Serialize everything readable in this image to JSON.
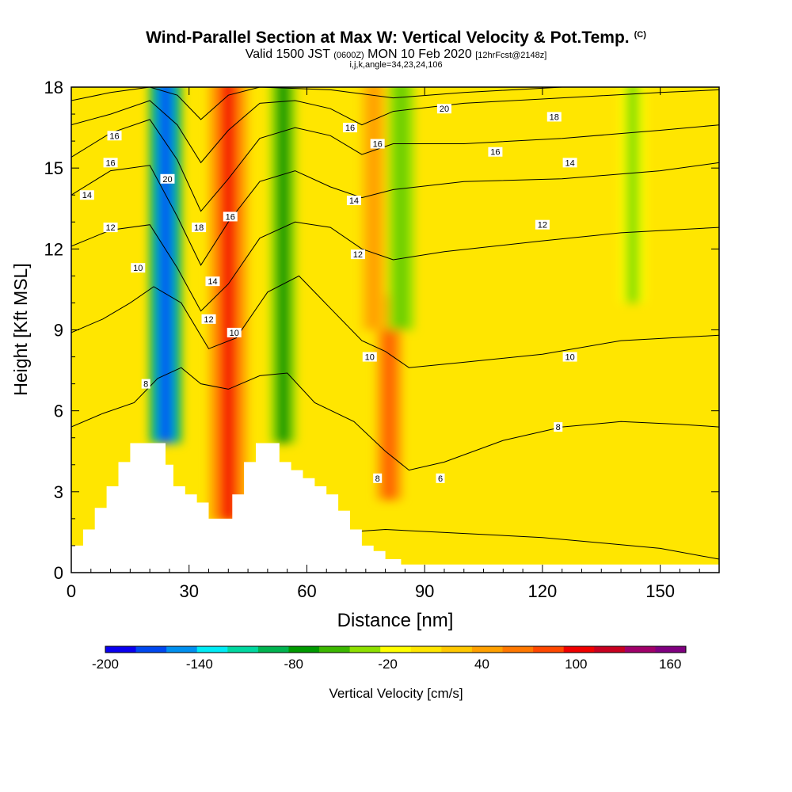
{
  "title": {
    "main": "Wind-Parallel Section at Max W: Vertical Velocity & Pot.Temp.",
    "corner": "(C)",
    "valid_a": "Valid 1500 JST",
    "valid_b": "(0600Z)",
    "valid_c": "MON 10 Feb 2020",
    "valid_d": "[12hrFcst@2148z]",
    "sub": "i,j,k,angle=34,23,24,106"
  },
  "chart_data": {
    "type": "heatmap",
    "xlabel": "Distance [nm]",
    "ylabel": "Height [Kft MSL]",
    "xlim": [
      0,
      165
    ],
    "ylim": [
      0,
      18
    ],
    "xticks": [
      0,
      30,
      60,
      90,
      120,
      150
    ],
    "yticks": [
      0,
      3,
      6,
      9,
      12,
      15,
      18
    ],
    "colorbar": {
      "label": "Vertical Velocity [cm/s]",
      "min": -200,
      "max": 170,
      "step": 20,
      "tick_labels": [
        -200,
        -140,
        -80,
        -20,
        40,
        100,
        160
      ],
      "colors": [
        "#0a00f0",
        "#0048f0",
        "#0090f0",
        "#00ecf6",
        "#00d8a0",
        "#00b450",
        "#009a00",
        "#3cb800",
        "#8ee000",
        "#ffff00",
        "#ffe600",
        "#ffc800",
        "#ffa000",
        "#ff7800",
        "#ff4800",
        "#f00000",
        "#c80020",
        "#a0006a",
        "#800080"
      ]
    },
    "vertical_velocity_features": [
      {
        "x": 24,
        "ymin": 4.8,
        "ymax": 18,
        "w": -200
      },
      {
        "x": 40,
        "ymin": 1.9,
        "ymax": 18,
        "w": 110
      },
      {
        "x": 54,
        "ymin": 4.8,
        "ymax": 18,
        "w": -80
      },
      {
        "x": 81,
        "ymin": 2.7,
        "ymax": 10,
        "w": 90
      },
      {
        "x": 77,
        "ymin": 9,
        "ymax": 18,
        "w": 50
      },
      {
        "x": 84,
        "ymin": 9,
        "ymax": 18,
        "w": -50
      },
      {
        "x": 143,
        "ymin": 10,
        "ymax": 18,
        "w": -30
      }
    ],
    "terrain_profile": [
      [
        0,
        1
      ],
      [
        3,
        1
      ],
      [
        3,
        1.6
      ],
      [
        6,
        1.6
      ],
      [
        6,
        2.4
      ],
      [
        9,
        2.4
      ],
      [
        9,
        3.2
      ],
      [
        12,
        3.2
      ],
      [
        12,
        4.1
      ],
      [
        15,
        4.1
      ],
      [
        15,
        4.8
      ],
      [
        24,
        4.8
      ],
      [
        24,
        4
      ],
      [
        26,
        4
      ],
      [
        26,
        3.2
      ],
      [
        29,
        3.2
      ],
      [
        29,
        2.9
      ],
      [
        32,
        2.9
      ],
      [
        32,
        2.6
      ],
      [
        35,
        2.6
      ],
      [
        35,
        2
      ],
      [
        41,
        2
      ],
      [
        41,
        2.9
      ],
      [
        44,
        2.9
      ],
      [
        44,
        4.1
      ],
      [
        47,
        4.1
      ],
      [
        47,
        4.8
      ],
      [
        53,
        4.8
      ],
      [
        53,
        4.1
      ],
      [
        56,
        4.1
      ],
      [
        56,
        3.8
      ],
      [
        59,
        3.8
      ],
      [
        59,
        3.5
      ],
      [
        62,
        3.5
      ],
      [
        62,
        3.2
      ],
      [
        65,
        3.2
      ],
      [
        65,
        2.9
      ],
      [
        68,
        2.9
      ],
      [
        68,
        2.3
      ],
      [
        71,
        2.3
      ],
      [
        71,
        1.6
      ],
      [
        74,
        1.6
      ],
      [
        74,
        1
      ],
      [
        77,
        1
      ],
      [
        77,
        0.8
      ],
      [
        80,
        0.8
      ],
      [
        80,
        0.5
      ],
      [
        84,
        0.5
      ],
      [
        84,
        0.3
      ],
      [
        165,
        0.3
      ]
    ],
    "theta_contours": [
      {
        "label": "6",
        "pts": [
          [
            0,
            0.7
          ],
          [
            20,
            1
          ],
          [
            50,
            1.3
          ],
          [
            80,
            1.6
          ],
          [
            120,
            1.3
          ],
          [
            150,
            0.9
          ],
          [
            165,
            0.5
          ]
        ]
      },
      {
        "label": "8",
        "pts": [
          [
            0,
            5.4
          ],
          [
            8,
            5.9
          ],
          [
            16,
            6.3
          ],
          [
            22,
            7.2
          ],
          [
            28,
            7.6
          ],
          [
            33,
            7.0
          ],
          [
            40,
            6.8
          ],
          [
            48,
            7.3
          ],
          [
            55,
            7.4
          ],
          [
            62,
            6.3
          ],
          [
            72,
            5.6
          ],
          [
            80,
            4.5
          ],
          [
            86,
            3.8
          ],
          [
            95,
            4.1
          ],
          [
            110,
            4.9
          ],
          [
            125,
            5.4
          ],
          [
            140,
            5.6
          ],
          [
            155,
            5.5
          ],
          [
            165,
            5.4
          ]
        ]
      },
      {
        "label": "10",
        "pts": [
          [
            0,
            8.9
          ],
          [
            8,
            9.4
          ],
          [
            15,
            10.0
          ],
          [
            21,
            10.6
          ],
          [
            28,
            10.0
          ],
          [
            35,
            8.3
          ],
          [
            42,
            8.7
          ],
          [
            50,
            10.4
          ],
          [
            58,
            11.0
          ],
          [
            66,
            9.8
          ],
          [
            74,
            8.6
          ],
          [
            80,
            8.2
          ],
          [
            86,
            7.6
          ],
          [
            100,
            7.8
          ],
          [
            120,
            8.1
          ],
          [
            140,
            8.6
          ],
          [
            165,
            8.8
          ]
        ]
      },
      {
        "label": "12",
        "pts": [
          [
            0,
            12.1
          ],
          [
            10,
            12.7
          ],
          [
            20,
            12.9
          ],
          [
            27,
            11.3
          ],
          [
            33,
            9.7
          ],
          [
            40,
            10.7
          ],
          [
            48,
            12.4
          ],
          [
            57,
            13.0
          ],
          [
            66,
            12.8
          ],
          [
            74,
            12.0
          ],
          [
            82,
            11.6
          ],
          [
            95,
            11.9
          ],
          [
            120,
            12.3
          ],
          [
            140,
            12.6
          ],
          [
            165,
            12.8
          ]
        ]
      },
      {
        "label": "14",
        "pts": [
          [
            0,
            14.0
          ],
          [
            10,
            14.9
          ],
          [
            20,
            15.1
          ],
          [
            27,
            13.2
          ],
          [
            33,
            11.4
          ],
          [
            40,
            13.0
          ],
          [
            48,
            14.5
          ],
          [
            57,
            14.9
          ],
          [
            66,
            14.3
          ],
          [
            74,
            13.9
          ],
          [
            82,
            14.2
          ],
          [
            100,
            14.5
          ],
          [
            125,
            14.6
          ],
          [
            150,
            14.9
          ],
          [
            165,
            15.2
          ]
        ]
      },
      {
        "label": "16",
        "pts": [
          [
            0,
            15.4
          ],
          [
            10,
            16.3
          ],
          [
            20,
            16.8
          ],
          [
            27,
            15.3
          ],
          [
            33,
            13.4
          ],
          [
            40,
            14.6
          ],
          [
            48,
            16.1
          ],
          [
            57,
            16.5
          ],
          [
            66,
            16.2
          ],
          [
            74,
            15.5
          ],
          [
            82,
            15.9
          ],
          [
            100,
            15.9
          ],
          [
            125,
            16.1
          ],
          [
            150,
            16.4
          ],
          [
            165,
            16.6
          ]
        ]
      },
      {
        "label": "18",
        "pts": [
          [
            0,
            16.6
          ],
          [
            10,
            17.0
          ],
          [
            20,
            17.5
          ],
          [
            27,
            16.6
          ],
          [
            33,
            15.2
          ],
          [
            40,
            16.4
          ],
          [
            48,
            17.4
          ],
          [
            57,
            17.5
          ],
          [
            66,
            17.2
          ],
          [
            74,
            16.6
          ],
          [
            82,
            17.1
          ],
          [
            100,
            17.4
          ],
          [
            125,
            17.6
          ],
          [
            150,
            17.8
          ],
          [
            165,
            17.9
          ]
        ]
      },
      {
        "label": "20",
        "pts": [
          [
            0,
            17.5
          ],
          [
            10,
            17.8
          ],
          [
            20,
            18.0
          ],
          [
            27,
            17.7
          ],
          [
            33,
            16.8
          ],
          [
            40,
            17.7
          ],
          [
            48,
            18.0
          ],
          [
            66,
            17.9
          ],
          [
            82,
            17.6
          ],
          [
            100,
            17.8
          ],
          [
            125,
            18.0
          ],
          [
            165,
            18.0
          ]
        ]
      }
    ],
    "contour_labels": [
      {
        "t": "16",
        "x": 11,
        "y": 16.2
      },
      {
        "t": "16",
        "x": 10,
        "y": 15.2
      },
      {
        "t": "14",
        "x": 4,
        "y": 14.0
      },
      {
        "t": "12",
        "x": 10,
        "y": 12.8
      },
      {
        "t": "10",
        "x": 17,
        "y": 11.3
      },
      {
        "t": "8",
        "x": 19,
        "y": 7.0
      },
      {
        "t": "20",
        "x": 24.5,
        "y": 14.6
      },
      {
        "t": "18",
        "x": 32.5,
        "y": 12.8
      },
      {
        "t": "16",
        "x": 40.5,
        "y": 13.2
      },
      {
        "t": "14",
        "x": 36,
        "y": 10.8
      },
      {
        "t": "12",
        "x": 35,
        "y": 9.4
      },
      {
        "t": "10",
        "x": 41.5,
        "y": 8.9
      },
      {
        "t": "16",
        "x": 71,
        "y": 16.5
      },
      {
        "t": "16",
        "x": 78,
        "y": 15.9
      },
      {
        "t": "14",
        "x": 72,
        "y": 13.8
      },
      {
        "t": "12",
        "x": 73,
        "y": 11.8
      },
      {
        "t": "10",
        "x": 76,
        "y": 8.0
      },
      {
        "t": "8",
        "x": 78,
        "y": 3.5
      },
      {
        "t": "6",
        "x": 94,
        "y": 3.5
      },
      {
        "t": "20",
        "x": 95,
        "y": 17.2
      },
      {
        "t": "18",
        "x": 123,
        "y": 16.9
      },
      {
        "t": "16",
        "x": 108,
        "y": 15.6
      },
      {
        "t": "14",
        "x": 127,
        "y": 15.2
      },
      {
        "t": "12",
        "x": 120,
        "y": 12.9
      },
      {
        "t": "10",
        "x": 127,
        "y": 8.0
      },
      {
        "t": "8",
        "x": 124,
        "y": 5.4
      }
    ]
  }
}
